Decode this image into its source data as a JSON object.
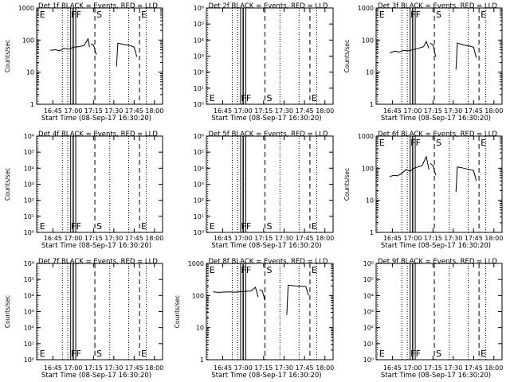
{
  "figure": {
    "background": "#ffffff",
    "foreground": "#000000"
  },
  "chart_data": [
    {
      "type": "line",
      "title": "Det 1f BLACK = Events, RED = LLD",
      "xlabel": "Start Time (08-Sep-17 16:30:20)",
      "ylabel": "Counts/sec",
      "yscale": "log",
      "ylim": [
        1,
        1000
      ],
      "ytick_labels": [
        "1",
        "10",
        "100",
        "1000"
      ],
      "xlim": [
        "16:33",
        "18:06"
      ],
      "xtick_labels": [
        "16:45",
        "17:00",
        "17:15",
        "17:30",
        "17:45",
        "18:00"
      ],
      "markers": [
        {
          "label": "E",
          "time": "16:34",
          "style": "dotted"
        },
        {
          "label": "F",
          "time": "16:59",
          "style": "solid"
        },
        {
          "label": "F",
          "time": "17:01",
          "style": "solid"
        },
        {
          "label": "S",
          "time": "17:16",
          "style": "dashed"
        },
        {
          "label": "E",
          "time": "17:49",
          "style": "dashed"
        }
      ],
      "series": [
        {
          "color": "#000000",
          "segments": [
            {
              "x": [
                "16:43",
                "16:47",
                "16:50",
                "16:53",
                "16:57",
                "17:00",
                "17:04",
                "17:08",
                "17:11",
                "17:12"
              ],
              "y": [
                48,
                50,
                46,
                55,
                52,
                60,
                62,
                68,
                110,
                60
              ]
            },
            {
              "x": [
                "17:13",
                "17:15",
                "17:17"
              ],
              "y": [
                75,
                70,
                35
              ]
            },
            {
              "x": [
                "17:32",
                "17:33",
                "17:38",
                "17:42",
                "17:45",
                "17:47"
              ],
              "y": [
                15,
                80,
                72,
                68,
                60,
                30
              ]
            }
          ]
        }
      ]
    },
    {
      "type": "line",
      "title": "Det 2f BLACK = Events, RED = LLD",
      "xlabel": "Start Time (08-Sep-17 16:30:20)",
      "ylabel": "",
      "yscale": "log",
      "ylim": [
        1,
        1000000
      ],
      "ytick_labels": [
        "10⁰",
        "10¹",
        "10²",
        "10³",
        "10⁴",
        "10⁵",
        "10⁶"
      ],
      "xlim": [
        "16:33",
        "18:06"
      ],
      "xtick_labels": [
        "16:45",
        "17:00",
        "17:15",
        "17:30",
        "17:45",
        "18:00"
      ],
      "markers": [
        {
          "label": "E",
          "time": "16:34",
          "style": "dotted"
        },
        {
          "label": "F",
          "time": "16:59",
          "style": "solid"
        },
        {
          "label": "F",
          "time": "17:01",
          "style": "solid"
        },
        {
          "label": "S",
          "time": "17:16",
          "style": "dashed"
        },
        {
          "label": "E",
          "time": "17:49",
          "style": "dashed"
        }
      ],
      "series": []
    },
    {
      "type": "line",
      "title": "Det 3f BLACK = Events, RED = LLD",
      "xlabel": "Start Time (08-Sep-17 16:30:20)",
      "ylabel": "Counts/sec",
      "yscale": "log",
      "ylim": [
        1,
        1000
      ],
      "ytick_labels": [
        "1",
        "10",
        "100",
        "1000"
      ],
      "xlim": [
        "16:33",
        "18:06"
      ],
      "xtick_labels": [
        "16:45",
        "17:00",
        "17:15",
        "17:30",
        "17:45",
        "18:00"
      ],
      "markers": [
        {
          "label": "E",
          "time": "16:34",
          "style": "dotted"
        },
        {
          "label": "F",
          "time": "16:59",
          "style": "solid"
        },
        {
          "label": "F",
          "time": "17:01",
          "style": "solid"
        },
        {
          "label": "S",
          "time": "17:16",
          "style": "dashed"
        },
        {
          "label": "E",
          "time": "17:49",
          "style": "dashed"
        }
      ],
      "series": [
        {
          "color": "#000000",
          "segments": [
            {
              "x": [
                "16:43",
                "16:47",
                "16:50",
                "16:53",
                "16:57",
                "17:00",
                "17:04",
                "17:08",
                "17:10",
                "17:12"
              ],
              "y": [
                40,
                45,
                42,
                48,
                46,
                50,
                55,
                62,
                90,
                55
              ]
            },
            {
              "x": [
                "17:13",
                "17:15",
                "17:17"
              ],
              "y": [
                80,
                70,
                30
              ]
            },
            {
              "x": [
                "17:32",
                "17:33",
                "17:38",
                "17:42",
                "17:45",
                "17:47"
              ],
              "y": [
                12,
                80,
                70,
                65,
                60,
                28
              ]
            }
          ]
        }
      ]
    },
    {
      "type": "line",
      "title": "Det 4f BLACK = Events, RED = LLD",
      "xlabel": "Start Time (08-Sep-17 16:30:20)",
      "ylabel": "Counts/sec",
      "yscale": "log",
      "ylim": [
        1,
        1000000
      ],
      "ytick_labels": [
        "10⁰",
        "10¹",
        "10²",
        "10³",
        "10⁴",
        "10⁵",
        "10⁶"
      ],
      "xlim": [
        "16:33",
        "18:06"
      ],
      "xtick_labels": [
        "16:45",
        "17:00",
        "17:15",
        "17:30",
        "17:45",
        "18:00"
      ],
      "markers": [
        {
          "label": "E",
          "time": "16:34",
          "style": "dotted"
        },
        {
          "label": "F",
          "time": "16:59",
          "style": "solid"
        },
        {
          "label": "F",
          "time": "17:01",
          "style": "solid"
        },
        {
          "label": "S",
          "time": "17:16",
          "style": "dashed"
        },
        {
          "label": "E",
          "time": "17:49",
          "style": "dashed"
        }
      ],
      "series": []
    },
    {
      "type": "line",
      "title": "Det 5f BLACK = Events, RED = LLD",
      "xlabel": "Start Time (08-Sep-17 16:30:20)",
      "ylabel": "",
      "yscale": "log",
      "ylim": [
        1,
        1000000
      ],
      "ytick_labels": [
        "10⁰",
        "10¹",
        "10²",
        "10³",
        "10⁴",
        "10⁵",
        "10⁶"
      ],
      "xlim": [
        "16:33",
        "18:06"
      ],
      "xtick_labels": [
        "16:45",
        "17:00",
        "17:15",
        "17:30",
        "17:45",
        "18:00"
      ],
      "markers": [
        {
          "label": "E",
          "time": "16:34",
          "style": "dotted"
        },
        {
          "label": "F",
          "time": "16:59",
          "style": "solid"
        },
        {
          "label": "F",
          "time": "17:01",
          "style": "solid"
        },
        {
          "label": "S",
          "time": "17:16",
          "style": "dashed"
        },
        {
          "label": "E",
          "time": "17:49",
          "style": "dashed"
        }
      ],
      "series": []
    },
    {
      "type": "line",
      "title": "Det 6f BLACK = Events, RED = LLD",
      "xlabel": "Start Time (08-Sep-17 16:30:20)",
      "ylabel": "Counts/sec",
      "yscale": "log",
      "ylim": [
        1,
        1000
      ],
      "ytick_labels": [
        "1",
        "10",
        "100",
        "1000"
      ],
      "xlim": [
        "16:33",
        "18:06"
      ],
      "xtick_labels": [
        "16:45",
        "17:00",
        "17:15",
        "17:30",
        "17:45",
        "18:00"
      ],
      "markers": [
        {
          "label": "E",
          "time": "16:34",
          "style": "dotted"
        },
        {
          "label": "F",
          "time": "16:59",
          "style": "solid"
        },
        {
          "label": "F",
          "time": "17:01",
          "style": "solid"
        },
        {
          "label": "S",
          "time": "17:16",
          "style": "dashed"
        },
        {
          "label": "E",
          "time": "17:49",
          "style": "dashed"
        }
      ],
      "series": [
        {
          "color": "#000000",
          "segments": [
            {
              "x": [
                "16:43",
                "16:46",
                "16:49",
                "16:52",
                "16:55",
                "16:58",
                "17:01",
                "17:04",
                "17:07",
                "17:10",
                "17:12"
              ],
              "y": [
                55,
                60,
                58,
                70,
                90,
                80,
                100,
                110,
                120,
                230,
                90
              ]
            },
            {
              "x": [
                "17:13",
                "17:15",
                "17:17"
              ],
              "y": [
                140,
                120,
                60
              ]
            },
            {
              "x": [
                "17:32",
                "17:33",
                "17:38",
                "17:42",
                "17:45",
                "17:47"
              ],
              "y": [
                18,
                110,
                100,
                90,
                85,
                40
              ]
            }
          ]
        }
      ]
    },
    {
      "type": "line",
      "title": "Det 7f BLACK = Events, RED = LLD",
      "xlabel": "Start Time (08-Sep-17 16:30:20)",
      "ylabel": "Counts/sec",
      "yscale": "log",
      "ylim": [
        1,
        1000000
      ],
      "ytick_labels": [
        "10⁰",
        "10¹",
        "10²",
        "10³",
        "10⁴",
        "10⁵",
        "10⁶"
      ],
      "xlim": [
        "16:33",
        "18:06"
      ],
      "xtick_labels": [
        "16:45",
        "17:00",
        "17:15",
        "17:30",
        "17:45",
        "18:00"
      ],
      "markers": [
        {
          "label": "E",
          "time": "16:34",
          "style": "dotted"
        },
        {
          "label": "F",
          "time": "16:59",
          "style": "solid"
        },
        {
          "label": "F",
          "time": "17:01",
          "style": "solid"
        },
        {
          "label": "S",
          "time": "17:16",
          "style": "dashed"
        },
        {
          "label": "E",
          "time": "17:49",
          "style": "dashed"
        }
      ],
      "series": []
    },
    {
      "type": "line",
      "title": "Det 8f BLACK = Events, RED = LLD",
      "xlabel": "Start Time (08-Sep-17 16:30:20)",
      "ylabel": "Counts/sec",
      "yscale": "log",
      "ylim": [
        1,
        1000
      ],
      "ytick_labels": [
        "1",
        "10",
        "100",
        "1000"
      ],
      "xlim": [
        "16:33",
        "18:06"
      ],
      "xtick_labels": [
        "16:45",
        "17:00",
        "17:15",
        "17:30",
        "17:45",
        "18:00"
      ],
      "markers": [
        {
          "label": "E",
          "time": "16:34",
          "style": "dotted"
        },
        {
          "label": "F",
          "time": "16:59",
          "style": "solid"
        },
        {
          "label": "F",
          "time": "17:01",
          "style": "solid"
        },
        {
          "label": "S",
          "time": "17:16",
          "style": "dashed"
        },
        {
          "label": "E",
          "time": "17:49",
          "style": "dashed"
        }
      ],
      "series": [
        {
          "color": "#000000",
          "segments": [
            {
              "x": [
                "16:38",
                "16:42",
                "16:46",
                "16:50",
                "16:54",
                "16:58",
                "17:02",
                "17:06",
                "17:09",
                "17:11"
              ],
              "y": [
                130,
                125,
                128,
                130,
                127,
                132,
                135,
                140,
                180,
                90
              ]
            },
            {
              "x": [
                "17:12",
                "17:14",
                "17:16"
              ],
              "y": [
                150,
                140,
                70
              ]
            },
            {
              "x": [
                "17:32",
                "17:33",
                "17:38",
                "17:42",
                "17:46",
                "17:48"
              ],
              "y": [
                25,
                210,
                200,
                195,
                190,
                100
              ]
            }
          ]
        }
      ]
    },
    {
      "type": "line",
      "title": "Det 9f BLACK = Events, RED = LLD",
      "xlabel": "Start Time (08-Sep-17 16:30:20)",
      "ylabel": "",
      "yscale": "log",
      "ylim": [
        1,
        1000000
      ],
      "ytick_labels": [
        "10⁰",
        "10¹",
        "10²",
        "10³",
        "10⁴",
        "10⁵",
        "10⁶"
      ],
      "xlim": [
        "16:33",
        "18:06"
      ],
      "xtick_labels": [
        "16:45",
        "17:00",
        "17:15",
        "17:30",
        "17:45",
        "18:00"
      ],
      "markers": [
        {
          "label": "E",
          "time": "16:34",
          "style": "dotted"
        },
        {
          "label": "F",
          "time": "16:59",
          "style": "solid"
        },
        {
          "label": "F",
          "time": "17:01",
          "style": "solid"
        },
        {
          "label": "S",
          "time": "17:16",
          "style": "dashed"
        },
        {
          "label": "E",
          "time": "17:49",
          "style": "dashed"
        }
      ],
      "series": []
    }
  ]
}
